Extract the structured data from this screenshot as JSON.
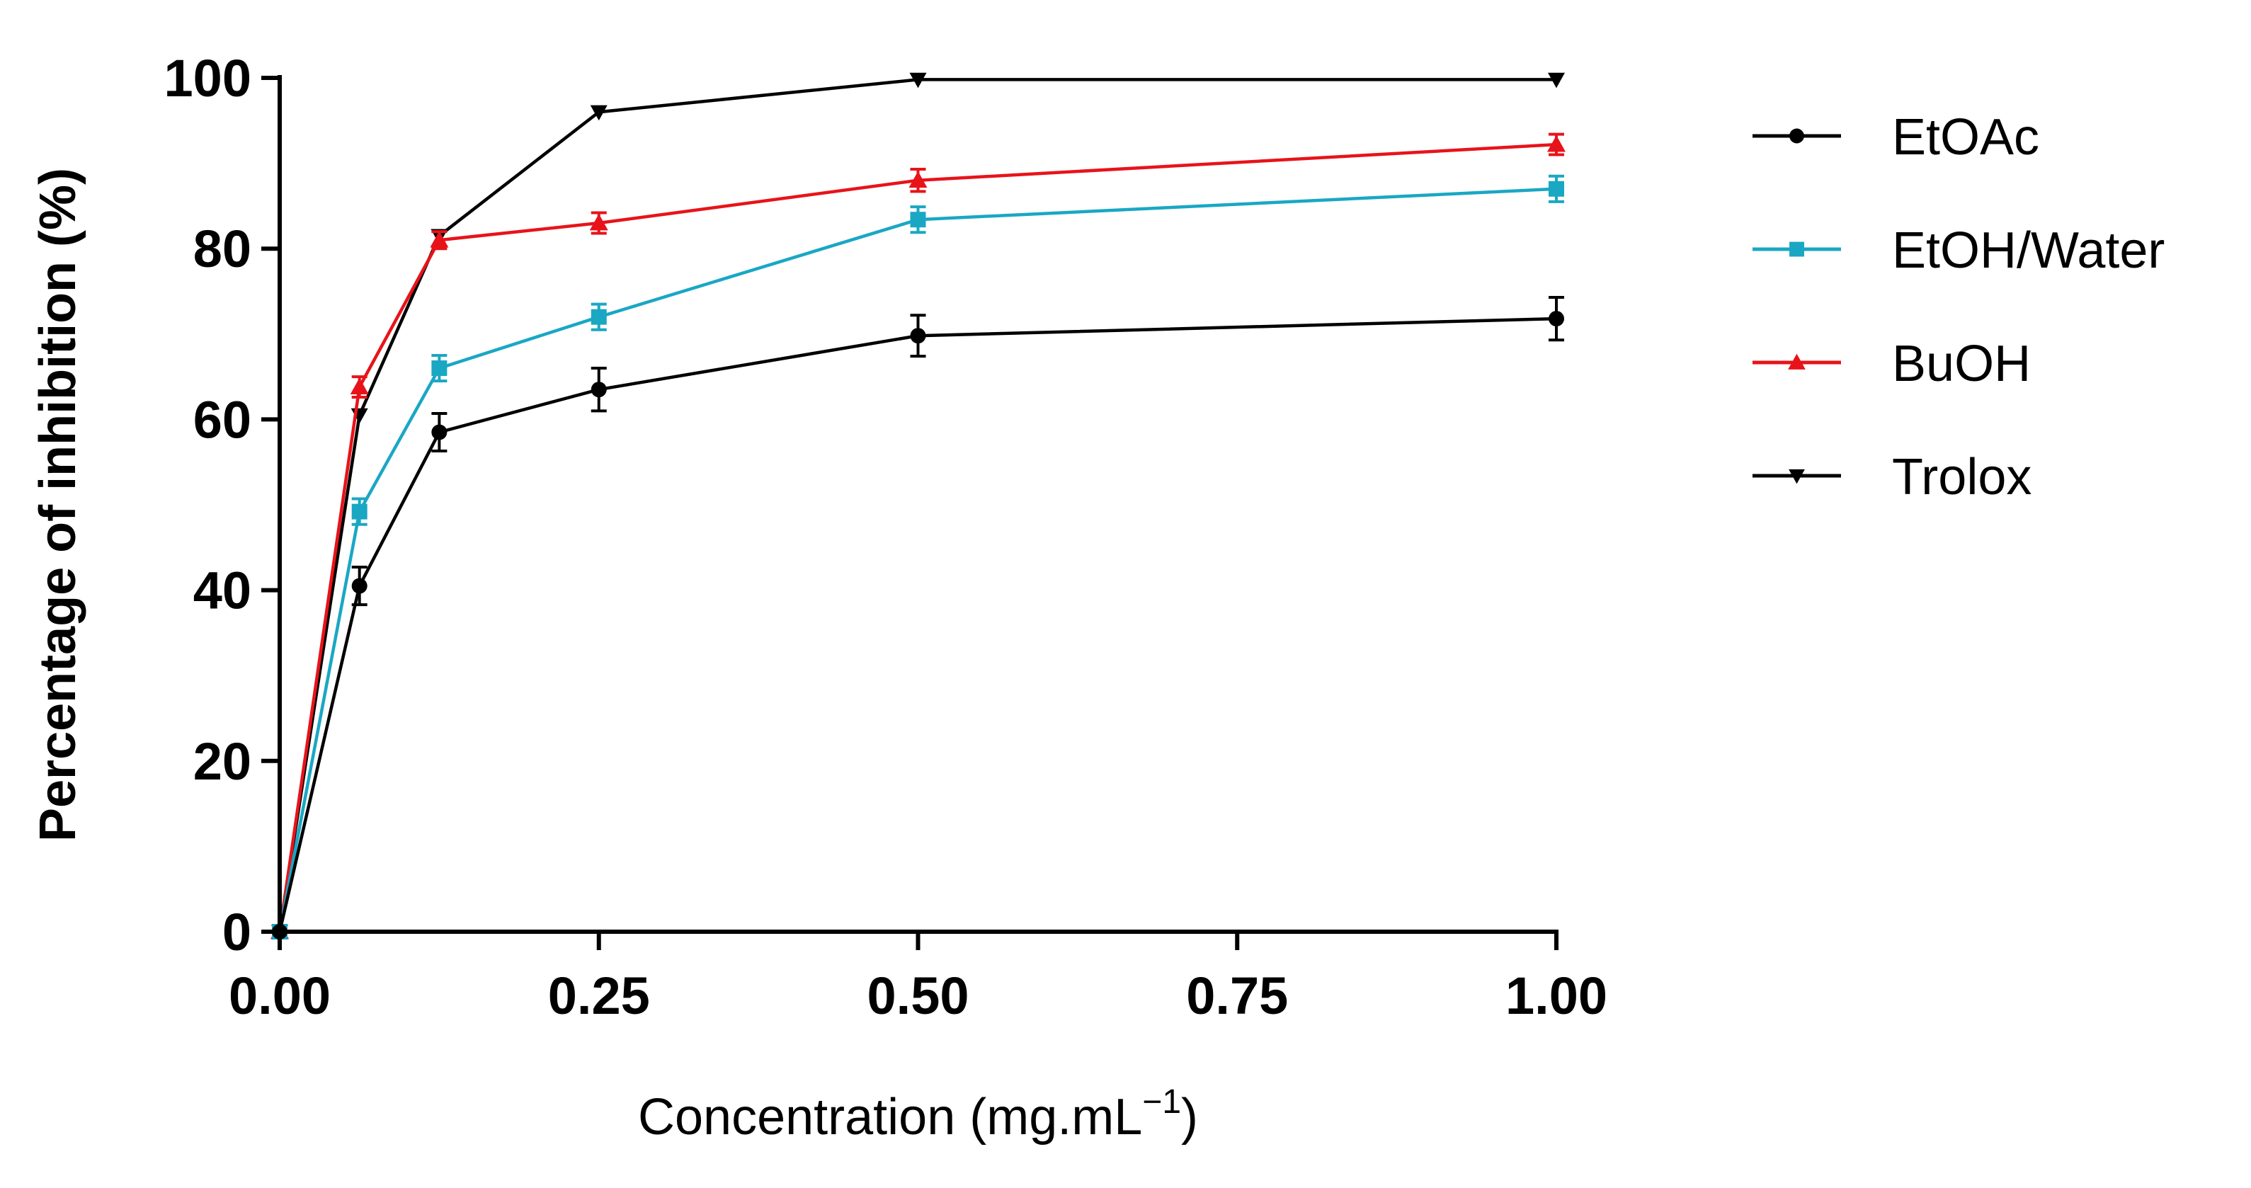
{
  "chart_data": {
    "type": "line",
    "title": "",
    "xlabel": "Concentration (mg.mL",
    "xlabel_superscript": "−1",
    "xlabel_close": ")",
    "ylabel": "Percentage of inhibition (%)",
    "xlim": [
      0,
      1
    ],
    "ylim": [
      0,
      100
    ],
    "x_ticks": [
      0,
      0.25,
      0.5,
      0.75,
      1
    ],
    "x_tick_labels": [
      "0.00",
      "0.25",
      "0.50",
      "0.75",
      "1.00"
    ],
    "y_ticks": [
      0,
      20,
      40,
      60,
      80,
      100
    ],
    "y_tick_labels": [
      "0",
      "20",
      "40",
      "60",
      "80",
      "100"
    ],
    "grid": false,
    "legend_position": "right",
    "x": [
      0,
      0.0625,
      0.125,
      0.25,
      0.5,
      1.0
    ],
    "series": [
      {
        "name": "EtOAc",
        "color": "#000000",
        "marker": "circle",
        "values": [
          0,
          40.5,
          58.5,
          63.5,
          69.8,
          71.8
        ],
        "errors": [
          0,
          2.2,
          2.2,
          2.5,
          2.4,
          2.5
        ]
      },
      {
        "name": "EtOH/Water",
        "color": "#1aa7c4",
        "marker": "square",
        "values": [
          0,
          49.2,
          66.0,
          72.0,
          83.4,
          87.0
        ],
        "errors": [
          0,
          1.5,
          1.5,
          1.5,
          1.5,
          1.5
        ]
      },
      {
        "name": "BuOH",
        "color": "#e8131a",
        "marker": "triangle-up",
        "values": [
          0,
          63.8,
          81.0,
          83.0,
          88.0,
          92.2
        ],
        "errors": [
          0,
          1.2,
          1.0,
          1.2,
          1.3,
          1.2
        ]
      },
      {
        "name": "Trolox",
        "color": "#000000",
        "marker": "triangle-down",
        "values": [
          0,
          60.5,
          81.5,
          96.0,
          99.8,
          99.8
        ],
        "errors": [
          0,
          0,
          0,
          0,
          0,
          0
        ]
      }
    ]
  }
}
